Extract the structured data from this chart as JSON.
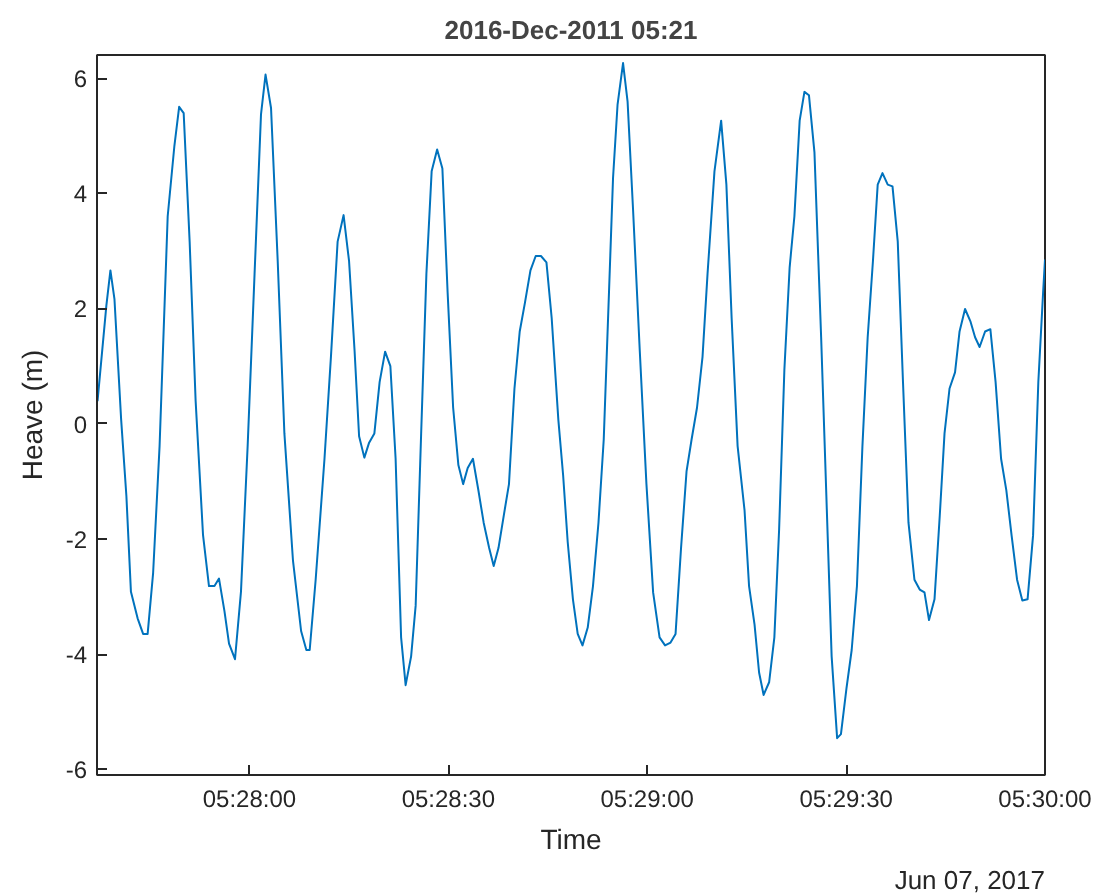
{
  "chart_data": {
    "type": "line",
    "title": "2016-Dec-2011 05:21",
    "xlabel": "Time",
    "ylabel": "Heave (m)",
    "annotations": [
      "Jun 07, 2017"
    ],
    "x": [
      5.4603,
      5.46067,
      5.46084,
      5.46101,
      5.46129,
      5.46151,
      5.4617,
      5.46198,
      5.46221,
      5.4624,
      5.46263,
      5.4629,
      5.46324,
      5.46352,
      5.46372,
      5.46391,
      5.46416,
      5.46441,
      5.46472,
      5.46497,
      5.4652,
      5.46539,
      5.46562,
      5.46581,
      5.46606,
      5.46631,
      5.46659,
      5.46688,
      5.46715,
      5.46734,
      5.46757,
      5.46785,
      5.46813,
      5.46849,
      5.46883,
      5.46905,
      5.46919,
      5.46944,
      5.46981,
      5.47008,
      5.47036,
      5.47061,
      5.47084,
      5.47107,
      5.47126,
      5.47148,
      5.47168,
      5.4719,
      5.47212,
      5.47235,
      5.47257,
      5.47279,
      5.47302,
      5.47321,
      5.47344,
      5.47363,
      5.47386,
      5.47408,
      5.4743,
      5.47453,
      5.47475,
      5.47497,
      5.4752,
      5.47542,
      5.47562,
      5.47581,
      5.47603,
      5.47626,
      5.47648,
      5.47671,
      5.4769,
      5.4771,
      5.47732,
      5.47754,
      5.47777,
      5.47799,
      5.47821,
      5.47844,
      5.47866,
      5.47888,
      5.47911,
      5.47933,
      5.47961,
      5.47981,
      5.48,
      5.48022,
      5.48042,
      5.48062,
      5.48084,
      5.48106,
      5.48129,
      5.48151,
      5.48173,
      5.4819,
      5.48209,
      5.48232,
      5.48251,
      5.48274,
      5.48302,
      5.4833,
      5.48358,
      5.48385,
      5.48408,
      5.48431,
      5.48452,
      5.48475,
      5.48498,
      5.48519,
      5.48542,
      5.48565,
      5.48586,
      5.48615,
      5.48643,
      5.48665,
      5.48687,
      5.48712,
      5.48741,
      5.4876,
      5.48783,
      5.48802,
      5.48821,
      5.48844,
      5.48866,
      5.48886,
      5.48908,
      5.4893,
      5.4895,
      5.48972,
      5.48992,
      5.49011,
      5.49034,
      5.49062,
      5.49084,
      5.49106,
      5.49129,
      5.49145,
      5.49168,
      5.4919,
      5.49212,
      5.49235,
      5.49257,
      5.49279,
      5.49299,
      5.49319,
      5.49341,
      5.49361,
      5.49383,
      5.49405,
      5.49428,
      5.49453,
      5.49475,
      5.49495,
      5.49514,
      5.49537,
      5.49559,
      5.49579,
      5.496,
      5.49623,
      5.49642,
      5.49665,
      5.49688,
      5.49707,
      5.49726,
      5.49749,
      5.49771,
      5.49793,
      5.49816,
      5.49838,
      5.4986,
      5.49883,
      5.49905,
      5.49927,
      5.4995,
      5.49972,
      5.49992,
      5.5
    ],
    "series": [
      {
        "color": "#0072bd",
        "values": [
          0.39,
          2.05,
          2.66,
          2.16,
          0.07,
          -1.26,
          -2.92,
          -3.38,
          -3.65,
          -3.65,
          -2.59,
          -0.39,
          3.6,
          4.82,
          5.5,
          5.39,
          3.16,
          0.4,
          -1.93,
          -2.82,
          -2.82,
          -2.69,
          -3.26,
          -3.82,
          -4.09,
          -2.92,
          -0.39,
          2.6,
          5.37,
          6.06,
          5.48,
          2.82,
          -0.17,
          -2.38,
          -3.6,
          -3.93,
          -3.93,
          -2.71,
          -0.61,
          1.16,
          3.16,
          3.62,
          2.82,
          1.27,
          -0.22,
          -0.59,
          -0.33,
          -0.17,
          0.72,
          1.25,
          1.0,
          -0.61,
          -3.71,
          -4.54,
          -4.04,
          -3.16,
          -0.17,
          2.6,
          4.38,
          4.76,
          4.43,
          2.27,
          0.28,
          -0.72,
          -1.05,
          -0.77,
          -0.61,
          -1.16,
          -1.72,
          -2.16,
          -2.47,
          -2.16,
          -1.6,
          -1.05,
          0.61,
          1.6,
          2.1,
          2.66,
          2.91,
          2.91,
          2.8,
          1.83,
          0.06,
          -0.9,
          -2.05,
          -3.05,
          -3.65,
          -3.85,
          -3.54,
          -2.82,
          -1.72,
          -0.28,
          2.27,
          4.26,
          5.54,
          6.26,
          5.59,
          3.71,
          1.27,
          -1.05,
          -2.93,
          -3.71,
          -3.85,
          -3.8,
          -3.65,
          -2.16,
          -0.83,
          -0.28,
          0.28,
          1.16,
          2.6,
          4.38,
          5.26,
          4.15,
          1.83,
          -0.39,
          -1.5,
          -2.82,
          -3.49,
          -4.32,
          -4.71,
          -4.49,
          -3.71,
          -1.83,
          0.94,
          2.71,
          3.6,
          5.26,
          5.76,
          5.7,
          4.71,
          1.5,
          -1.27,
          -4.04,
          -5.46,
          -5.39,
          -4.6,
          -3.93,
          -2.82,
          -0.39,
          1.5,
          2.82,
          4.15,
          4.35,
          4.15,
          4.12,
          3.16,
          0.72,
          -1.72,
          -2.71,
          -2.88,
          -2.93,
          -3.41,
          -3.05,
          -1.6,
          -0.17,
          0.61,
          0.89,
          1.6,
          1.99,
          1.77,
          1.5,
          1.33,
          1.6,
          1.64,
          0.72,
          -0.61,
          -1.16,
          -1.94,
          -2.71,
          -3.07,
          -3.05,
          -1.94,
          0.72,
          2.27,
          2.85
        ]
      }
    ],
    "xlim": [
      5.460278,
      5.5
    ],
    "xticks": [
      {
        "value": 5.466667,
        "label": "05:28:00"
      },
      {
        "value": 5.475,
        "label": "05:28:30"
      },
      {
        "value": 5.483333,
        "label": "05:29:00"
      },
      {
        "value": 5.491667,
        "label": "05:29:30"
      },
      {
        "value": 5.5,
        "label": "05:30:00"
      }
    ],
    "ylim": [
      -6.1,
      6.4
    ],
    "yticks": [
      -6,
      -4,
      -2,
      0,
      2,
      4,
      6
    ],
    "grid": false,
    "line_style": "solid",
    "marker": "none"
  }
}
